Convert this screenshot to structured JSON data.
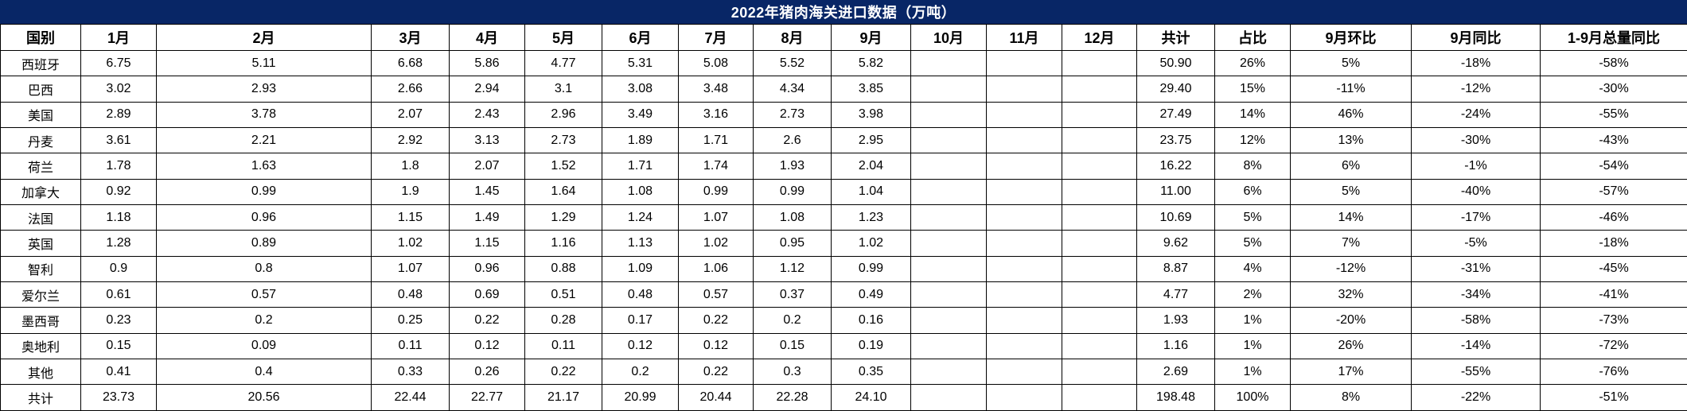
{
  "title": "2022年猪肉海关进口数据（万吨）",
  "colors": {
    "title_bg": "#082666",
    "title_text": "#ffffff",
    "border_color": "#000000",
    "cell_bg": "#ffffff",
    "cell_text": "#000000"
  },
  "table": {
    "headers": [
      "国别",
      "1月",
      "2月",
      "3月",
      "4月",
      "5月",
      "6月",
      "7月",
      "8月",
      "9月",
      "10月",
      "11月",
      "12月",
      "共计",
      "占比",
      "9月环比",
      "9月同比",
      "1-9月总量同比"
    ],
    "rows": [
      [
        "西班牙",
        "6.75",
        "5.11",
        "6.68",
        "5.86",
        "4.77",
        "5.31",
        "5.08",
        "5.52",
        "5.82",
        "",
        "",
        "",
        "50.90",
        "26%",
        "5%",
        "-18%",
        "-58%"
      ],
      [
        "巴西",
        "3.02",
        "2.93",
        "2.66",
        "2.94",
        "3.1",
        "3.08",
        "3.48",
        "4.34",
        "3.85",
        "",
        "",
        "",
        "29.40",
        "15%",
        "-11%",
        "-12%",
        "-30%"
      ],
      [
        "美国",
        "2.89",
        "3.78",
        "2.07",
        "2.43",
        "2.96",
        "3.49",
        "3.16",
        "2.73",
        "3.98",
        "",
        "",
        "",
        "27.49",
        "14%",
        "46%",
        "-24%",
        "-55%"
      ],
      [
        "丹麦",
        "3.61",
        "2.21",
        "2.92",
        "3.13",
        "2.73",
        "1.89",
        "1.71",
        "2.6",
        "2.95",
        "",
        "",
        "",
        "23.75",
        "12%",
        "13%",
        "-30%",
        "-43%"
      ],
      [
        "荷兰",
        "1.78",
        "1.63",
        "1.8",
        "2.07",
        "1.52",
        "1.71",
        "1.74",
        "1.93",
        "2.04",
        "",
        "",
        "",
        "16.22",
        "8%",
        "6%",
        "-1%",
        "-54%"
      ],
      [
        "加拿大",
        "0.92",
        "0.99",
        "1.9",
        "1.45",
        "1.64",
        "1.08",
        "0.99",
        "0.99",
        "1.04",
        "",
        "",
        "",
        "11.00",
        "6%",
        "5%",
        "-40%",
        "-57%"
      ],
      [
        "法国",
        "1.18",
        "0.96",
        "1.15",
        "1.49",
        "1.29",
        "1.24",
        "1.07",
        "1.08",
        "1.23",
        "",
        "",
        "",
        "10.69",
        "5%",
        "14%",
        "-17%",
        "-46%"
      ],
      [
        "英国",
        "1.28",
        "0.89",
        "1.02",
        "1.15",
        "1.16",
        "1.13",
        "1.02",
        "0.95",
        "1.02",
        "",
        "",
        "",
        "9.62",
        "5%",
        "7%",
        "-5%",
        "-18%"
      ],
      [
        "智利",
        "0.9",
        "0.8",
        "1.07",
        "0.96",
        "0.88",
        "1.09",
        "1.06",
        "1.12",
        "0.99",
        "",
        "",
        "",
        "8.87",
        "4%",
        "-12%",
        "-31%",
        "-45%"
      ],
      [
        "爱尔兰",
        "0.61",
        "0.57",
        "0.48",
        "0.69",
        "0.51",
        "0.48",
        "0.57",
        "0.37",
        "0.49",
        "",
        "",
        "",
        "4.77",
        "2%",
        "32%",
        "-34%",
        "-41%"
      ],
      [
        "墨西哥",
        "0.23",
        "0.2",
        "0.25",
        "0.22",
        "0.28",
        "0.17",
        "0.22",
        "0.2",
        "0.16",
        "",
        "",
        "",
        "1.93",
        "1%",
        "-20%",
        "-58%",
        "-73%"
      ],
      [
        "奥地利",
        "0.15",
        "0.09",
        "0.11",
        "0.12",
        "0.11",
        "0.12",
        "0.12",
        "0.15",
        "0.19",
        "",
        "",
        "",
        "1.16",
        "1%",
        "26%",
        "-14%",
        "-72%"
      ],
      [
        "其他",
        "0.41",
        "0.4",
        "0.33",
        "0.26",
        "0.22",
        "0.2",
        "0.22",
        "0.3",
        "0.35",
        "",
        "",
        "",
        "2.69",
        "1%",
        "17%",
        "-55%",
        "-76%"
      ],
      [
        "共计",
        "23.73",
        "20.56",
        "22.44",
        "22.77",
        "21.17",
        "20.99",
        "20.44",
        "22.28",
        "24.10",
        "",
        "",
        "",
        "198.48",
        "100%",
        "8%",
        "-22%",
        "-51%"
      ]
    ],
    "total_row_label": "共计"
  }
}
